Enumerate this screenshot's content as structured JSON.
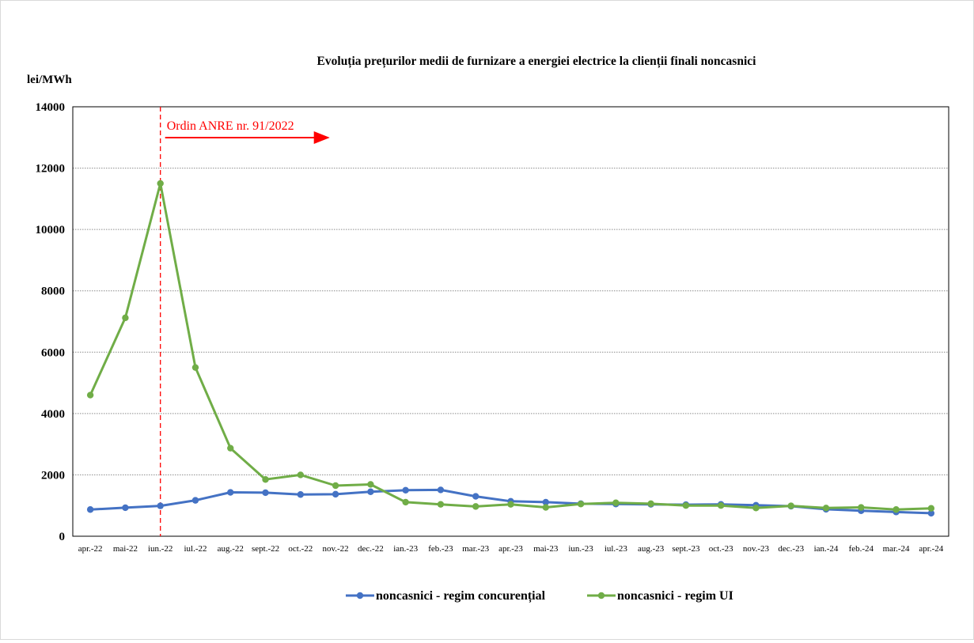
{
  "chart_data": {
    "type": "line",
    "title": "Evoluția prețurilor medii de furnizare a energiei electrice la clienții finali noncasnici",
    "ylabel": "lei/MWh",
    "xlabel": "",
    "ylim": [
      0,
      14000
    ],
    "yticks": [
      0,
      2000,
      4000,
      6000,
      8000,
      10000,
      12000,
      14000
    ],
    "grid": true,
    "legend_position": "bottom",
    "categories": [
      "apr.-22",
      "mai-22",
      "iun.-22",
      "iul.-22",
      "aug.-22",
      "sept.-22",
      "oct.-22",
      "nov.-22",
      "dec.-22",
      "ian.-23",
      "feb.-23",
      "mar.-23",
      "apr.-23",
      "mai-23",
      "iun.-23",
      "iul.-23",
      "aug.-23",
      "sept.-23",
      "oct.-23",
      "nov.-23",
      "dec.-23",
      "ian.-24",
      "feb.-24",
      "mar.-24",
      "apr.-24"
    ],
    "series": [
      {
        "name": "noncasnici - regim concurențial",
        "color": "#4472c4",
        "values": [
          870,
          930,
          990,
          1170,
          1430,
          1420,
          1360,
          1370,
          1450,
          1500,
          1510,
          1300,
          1140,
          1110,
          1060,
          1050,
          1040,
          1030,
          1040,
          1010,
          980,
          880,
          830,
          790,
          750
        ]
      },
      {
        "name": "noncasnici - regim UI",
        "color": "#70ad47",
        "values": [
          4600,
          7120,
          11500,
          5500,
          2870,
          1850,
          2000,
          1650,
          1690,
          1110,
          1040,
          970,
          1040,
          940,
          1050,
          1090,
          1060,
          1000,
          1000,
          920,
          990,
          920,
          940,
          870,
          910
        ]
      }
    ],
    "annotations": [
      {
        "text": "Ordin ANRE nr. 91/2022",
        "at_category": "iun.-22",
        "color": "#ff0000",
        "style": "dashed vertical line with arrow"
      }
    ]
  }
}
